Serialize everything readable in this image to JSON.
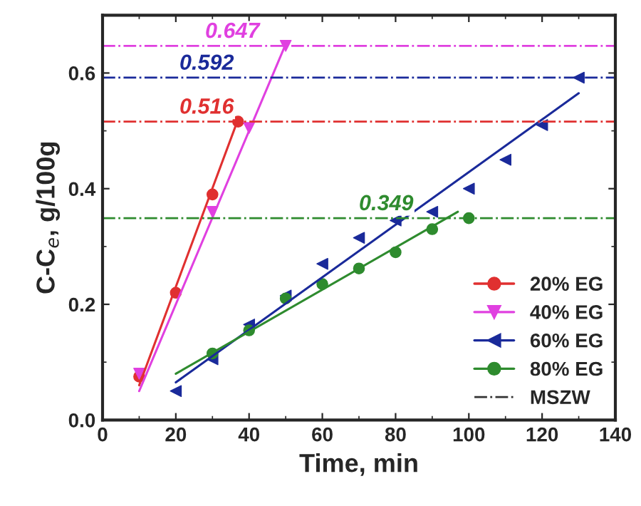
{
  "chart_data": {
    "type": "scatter",
    "xlabel": "Time, min",
    "ylabel": "C-C$_{e}$, g/100g",
    "xlim": [
      0,
      140
    ],
    "ylim": [
      0,
      0.7
    ],
    "xticks": [
      0,
      20,
      40,
      60,
      80,
      100,
      120,
      140
    ],
    "yticks": [
      {
        "value": 0,
        "label": "0.0"
      },
      {
        "value": 0.2,
        "label": "0.2"
      },
      {
        "value": 0.4,
        "label": "0.4"
      },
      {
        "value": 0.6,
        "label": "0.6"
      }
    ],
    "legend": "lower right",
    "grid": false,
    "series": [
      {
        "name": "20% EG",
        "marker": "circle",
        "color": "#e03030",
        "x": [
          10,
          20,
          30,
          37
        ],
        "values": [
          0.075,
          0.22,
          0.39,
          0.516
        ]
      },
      {
        "name": "40% EG",
        "marker": "triangle_down",
        "color": "#e040e0",
        "x": [
          10,
          30,
          40,
          50
        ],
        "values": [
          0.08,
          0.36,
          0.505,
          0.647
        ]
      },
      {
        "name": "60% EG",
        "marker": "triangle_left",
        "color": "#1a2a9a",
        "x": [
          20,
          30,
          40,
          50,
          60,
          70,
          80,
          90,
          100,
          110,
          120,
          130
        ],
        "values": [
          0.05,
          0.105,
          0.165,
          0.215,
          0.27,
          0.315,
          0.345,
          0.36,
          0.4,
          0.45,
          0.51,
          0.592
        ]
      },
      {
        "name": "80% EG",
        "marker": "circle",
        "color": "#2e8b2e",
        "x": [
          30,
          40,
          50,
          60,
          70,
          80,
          90,
          100
        ],
        "values": [
          0.115,
          0.155,
          0.21,
          0.235,
          0.262,
          0.29,
          0.33,
          0.349
        ]
      },
      {
        "type": "line",
        "color": "#e03030",
        "x": [
          10,
          37
        ],
        "values": [
          0.06,
          0.52
        ]
      },
      {
        "type": "line",
        "color": "#e040e0",
        "x": [
          10,
          50
        ],
        "values": [
          0.05,
          0.65
        ]
      },
      {
        "type": "line",
        "color": "#1a2a9a",
        "x": [
          20,
          130
        ],
        "values": [
          0.065,
          0.565
        ]
      },
      {
        "type": "line",
        "color": "#2e8b2e",
        "x": [
          20,
          97
        ],
        "values": [
          0.08,
          0.36
        ]
      }
    ],
    "ref_lines": [
      {
        "axis": "y",
        "value": 0.647,
        "label": "0.647",
        "color": "#e040e0",
        "line_style": "dashdot"
      },
      {
        "axis": "y",
        "value": 0.516,
        "label": "0.516",
        "color": "#e03030",
        "line_style": "dashdot"
      },
      {
        "axis": "y",
        "value": 0.592,
        "label": "0.592",
        "color": "#1a2a9a",
        "line_style": "dashdot"
      },
      {
        "axis": "y",
        "value": 0.349,
        "label": "0.349",
        "color": "#2e8b2e",
        "line_style": "dashdot"
      }
    ],
    "annotations": [
      "MSZW"
    ]
  }
}
